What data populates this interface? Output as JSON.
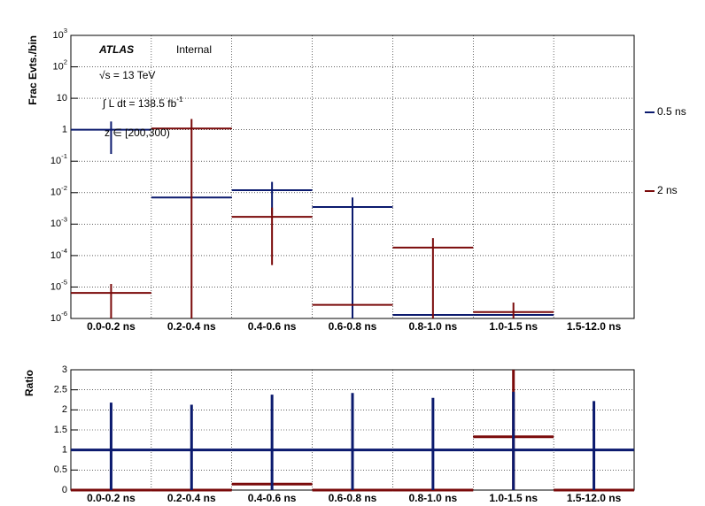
{
  "chart_data": [
    {
      "type": "errorbar",
      "log_y": true,
      "grid": true,
      "legend": "right",
      "ylabel": "Frac Evts./bin",
      "annotations": [
        "ATLAS",
        "Internal",
        "√s = 13 TeV",
        "∫ L dt = 138.5 fb^-1",
        "z ∈ [200,300)"
      ],
      "categories": [
        "0.0-0.2 ns",
        "0.2-0.4 ns",
        "0.4-0.6 ns",
        "0.6-0.8 ns",
        "0.8-1.0 ns",
        "1.0-1.5 ns",
        "1.5-12.0 ns"
      ],
      "ylim": [
        1e-06,
        1000
      ],
      "yticks": [
        {
          "value": 1e-06,
          "label": "10^-6"
        },
        {
          "value": 1e-05,
          "label": "10^-5"
        },
        {
          "value": 0.0001,
          "label": "10^-4"
        },
        {
          "value": 0.001,
          "label": "10^-3"
        },
        {
          "value": 0.01,
          "label": "10^-2"
        },
        {
          "value": 0.1,
          "label": "10^-1"
        },
        1,
        10,
        {
          "value": 100,
          "label": "10^2"
        },
        {
          "value": 1000,
          "label": "10^3"
        }
      ],
      "series": [
        {
          "name": "0.5 ns",
          "color": "#0b1a6e",
          "values": [
            1,
            0.007,
            0.012,
            0.0035,
            1.3e-06,
            1.3e-06,
            null
          ],
          "errors": [
            0.83,
            0,
            0.01,
            0.0035,
            0,
            0,
            null
          ]
        },
        {
          "name": "2 ns",
          "color": "#7a0a0a",
          "values": [
            6.5e-06,
            1.1,
            0.0017,
            2.7e-06,
            0.00018,
            1.6e-06,
            null
          ],
          "errors": [
            6e-06,
            1.1,
            0.00165,
            0,
            0.00018,
            1.6e-06,
            null
          ]
        }
      ]
    },
    {
      "type": "errorbar",
      "log_y": false,
      "grid": true,
      "ylabel": "Ratio",
      "categories": [
        "0.0-0.2 ns",
        "0.2-0.4 ns",
        "0.4-0.6 ns",
        "0.6-0.8 ns",
        "0.8-1.0 ns",
        "1.0-1.5 ns",
        "1.5-12.0 ns"
      ],
      "ylim": [
        0,
        3
      ],
      "yticks": [
        0,
        0.5,
        1,
        1.5,
        2,
        2.5,
        3
      ],
      "series": [
        {
          "color": "#7a0a0a",
          "values": [
            0,
            0,
            0.15,
            0,
            0,
            1.33,
            0
          ],
          "errors": [
            0,
            0,
            0,
            0,
            0,
            1.7,
            0
          ]
        },
        {
          "color": "#0b1a6e",
          "values": [
            1,
            1,
            1,
            1,
            1,
            1,
            1
          ],
          "errors": [
            1.18,
            1.13,
            1.38,
            1.42,
            1.3,
            1.45,
            1.22
          ]
        }
      ]
    }
  ]
}
